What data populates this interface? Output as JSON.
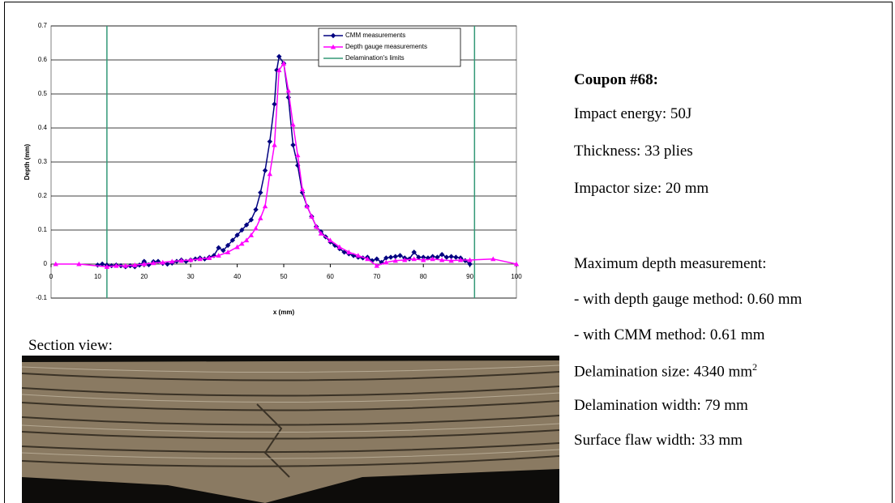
{
  "chart_data": {
    "type": "line",
    "xlabel": "x (mm)",
    "ylabel": "Depth (mm)",
    "xlim": [
      0,
      100
    ],
    "xticks": [
      0,
      10,
      20,
      30,
      40,
      50,
      60,
      70,
      80,
      90,
      100
    ],
    "ylim": [
      -0.1,
      0.7
    ],
    "yticks": [
      -0.1,
      0,
      0.1,
      0.2,
      0.3,
      0.4,
      0.5,
      0.6,
      0.7
    ],
    "grid": true,
    "legend": "upper-right",
    "series": [
      {
        "name": "CMM measurements",
        "color": "#000080",
        "marker": "diamond",
        "x": [
          10,
          11,
          12,
          13,
          14,
          15,
          16,
          17,
          18,
          19,
          20,
          21,
          22,
          23,
          24,
          25,
          26,
          27,
          28,
          29,
          30,
          31,
          32,
          33,
          34,
          35,
          36,
          37,
          38,
          39,
          40,
          41,
          42,
          43,
          44,
          45,
          46,
          47,
          48,
          48.5,
          49,
          50,
          51,
          52,
          53,
          54,
          55,
          56,
          57,
          58,
          59,
          60,
          61,
          62,
          63,
          64,
          65,
          66,
          67,
          68,
          69,
          70,
          71,
          72,
          73,
          74,
          75,
          76,
          77,
          78,
          79,
          80,
          81,
          82,
          83,
          84,
          85,
          86,
          87,
          88,
          89,
          90
        ],
        "values": [
          -0.003,
          0,
          -0.003,
          -0.005,
          -0.003,
          -0.005,
          -0.008,
          -0.005,
          -0.008,
          -0.003,
          0.008,
          -0.002,
          0.007,
          0.008,
          0.002,
          0,
          0.003,
          0.008,
          0.012,
          0.008,
          0.012,
          0.015,
          0.018,
          0.015,
          0.02,
          0.025,
          0.048,
          0.04,
          0.055,
          0.07,
          0.085,
          0.1,
          0.115,
          0.13,
          0.16,
          0.21,
          0.275,
          0.36,
          0.47,
          0.57,
          0.61,
          0.59,
          0.49,
          0.35,
          0.29,
          0.21,
          0.17,
          0.14,
          0.11,
          0.095,
          0.08,
          0.065,
          0.055,
          0.045,
          0.035,
          0.03,
          0.025,
          0.02,
          0.018,
          0.02,
          0.01,
          0.015,
          0.005,
          0.018,
          0.02,
          0.022,
          0.025,
          0.018,
          0.015,
          0.035,
          0.02,
          0.02,
          0.018,
          0.022,
          0.02,
          0.028,
          0.02,
          0.022,
          0.02,
          0.018,
          0.01,
          0
        ]
      },
      {
        "name": "Depth gauge measurements",
        "color": "#ff00ff",
        "marker": "triangle",
        "x": [
          1,
          6,
          12,
          14,
          16,
          18,
          20,
          22,
          24,
          26,
          28,
          30,
          32,
          34,
          36,
          38,
          40,
          41,
          42,
          43,
          44,
          45,
          46,
          47,
          48,
          49,
          50,
          51,
          52,
          53,
          54,
          55,
          56,
          57,
          58,
          60,
          62,
          64,
          66,
          68,
          70,
          72,
          74,
          76,
          78,
          80,
          82,
          84,
          86,
          88,
          90,
          95,
          100
        ],
        "values": [
          0,
          0,
          -0.008,
          -0.005,
          -0.005,
          -0.003,
          0,
          0.003,
          0.005,
          0.008,
          0.01,
          0.012,
          0.015,
          0.018,
          0.025,
          0.035,
          0.05,
          0.06,
          0.07,
          0.085,
          0.105,
          0.135,
          0.17,
          0.265,
          0.35,
          0.57,
          0.59,
          0.51,
          0.41,
          0.32,
          0.22,
          0.17,
          0.14,
          0.11,
          0.09,
          0.07,
          0.05,
          0.035,
          0.025,
          0.015,
          -0.005,
          0.005,
          0.01,
          0.012,
          0.015,
          0.012,
          0.015,
          0.012,
          0.01,
          0.012,
          0.012,
          0.015,
          0
        ]
      }
    ],
    "limits": {
      "name": "Delamination's limits",
      "color": "#339977",
      "x": [
        12,
        91
      ]
    }
  },
  "section_label": "Section view:",
  "info": {
    "title": "Coupon #68:",
    "lines": [
      "Impact energy: 50J",
      "Thickness: 33 plies",
      "Impactor size: 20 mm"
    ],
    "max_depth": {
      "heading": "Maximum depth measurement:",
      "gauge": "- with depth gauge method: 0.60 mm",
      "cmm": "- with CMM method: 0.61 mm"
    },
    "delamination_size": {
      "text": "Delamination size: 4340 mm",
      "sup": "2"
    },
    "delamination_width": "Delamination width: 79 mm",
    "surface_flaw": "Surface flaw width: 33 mm"
  }
}
